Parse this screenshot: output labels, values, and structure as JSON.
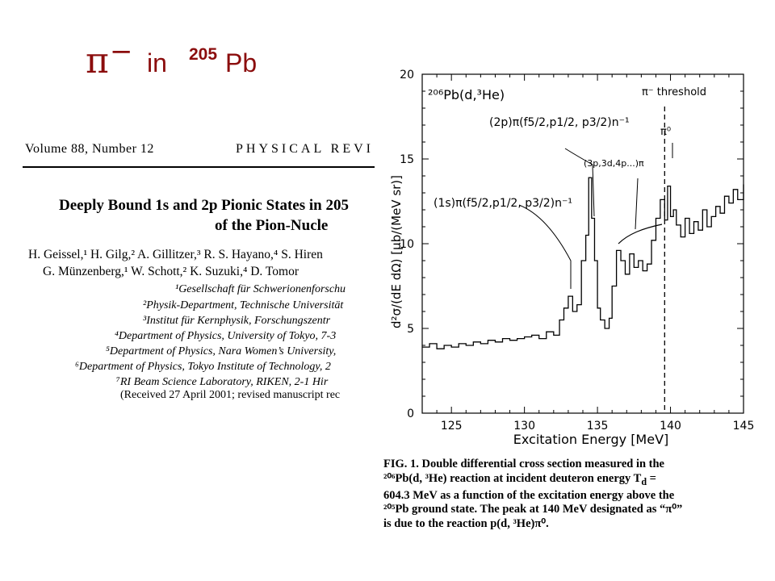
{
  "slide": {
    "title": {
      "particle": "π",
      "charge": "−",
      "word": "in",
      "mass": "205",
      "element": "Pb"
    },
    "title_color": "#8b0d0d"
  },
  "paper": {
    "volume": "Volume 88, Number 12",
    "journal": "PHYSICAL REVI",
    "title_line1": "Deeply Bound 1s and 2p Pionic States in 205",
    "title_line2": "of the Pion-Nucle",
    "authors_line1": "H. Geissel,¹ H. Gilg,² A. Gillitzer,³ R. S. Hayano,⁴ S. Hiren",
    "authors_line2": "G. Münzenberg,¹ W. Schott,² K. Suzuki,⁴ D. Tomor",
    "affiliations": [
      "¹Gesellschaft für Schwerionenforschu",
      "²Physik-Department, Technische Universität",
      "³Institut für Kernphysik, Forschungszentr",
      "⁴Department of Physics, University of Tokyo, 7-3",
      "⁵Department of Physics, Nara Women’s University,",
      "⁶Department of Physics, Tokyo Institute of Technology, 2",
      "⁷RI Beam Science Laboratory, RIKEN, 2-1 Hir"
    ],
    "received": "(Received 27 April 2001; revised manuscript rec"
  },
  "figure": {
    "reaction_label": "²⁰⁶Pb(d,³He)",
    "threshold_label": "π⁻ threshold",
    "label_pi0": "π⁰",
    "label_2p": "(2p)π(f5/2,p1/2, p3/2)n⁻¹",
    "label_3p": "(3p,3d,4p...)π",
    "label_1s": "(1s)π(f5/2,p1/2, p3/2)n⁻¹",
    "caption": {
      "l1": "FIG. 1.   Double differential cross section measured in the",
      "l2": "²⁰⁶Pb(d, ³He)  reaction at incident deuteron energy  T",
      "l2b": "d",
      "l2c": " =",
      "l3": "604.3 MeV as a function of the excitation energy above the",
      "l4": "²⁰⁵Pb ground state.  The peak at 140 MeV designated as “π⁰”",
      "l5": "is due to the reaction  p(d, ³He)π⁰."
    }
  },
  "chart_data": {
    "type": "line",
    "style": "histogram-step",
    "xlabel": "Excitation Energy   [MeV]",
    "ylabel": "d²σ/(dE dΩ)  [μb/(MeV sr)]",
    "xlim": [
      123,
      145
    ],
    "ylim": [
      0,
      20
    ],
    "xticks": [
      125,
      130,
      135,
      140,
      145
    ],
    "yticks": [
      0,
      5,
      10,
      15,
      20
    ],
    "threshold_x": 139.6,
    "series": [
      {
        "x": [
          123.0,
          123.5,
          124.0,
          124.5,
          125.0,
          125.5,
          126.0,
          126.5,
          127.0,
          127.5,
          128.0,
          128.5,
          129.0,
          129.5,
          130.0,
          130.5,
          131.0,
          131.5,
          132.0,
          132.4,
          132.7,
          133.0,
          133.3,
          133.6,
          133.9,
          134.2,
          134.4,
          134.6,
          134.8,
          135.0,
          135.2,
          135.5,
          135.8,
          136.0,
          136.3,
          136.6,
          136.9,
          137.2,
          137.5,
          137.8,
          138.1,
          138.4,
          138.7,
          139.0,
          139.3,
          139.6,
          139.8,
          140.0,
          140.2,
          140.4,
          140.7,
          141.0,
          141.3,
          141.6,
          141.9,
          142.2,
          142.5,
          142.8,
          143.1,
          143.4,
          143.7,
          144.0,
          144.3,
          144.6,
          145.0
        ],
        "y": [
          3.9,
          4.1,
          3.8,
          4.0,
          3.9,
          4.1,
          4.0,
          4.2,
          4.1,
          4.3,
          4.2,
          4.4,
          4.3,
          4.4,
          4.5,
          4.6,
          4.4,
          4.8,
          4.6,
          5.5,
          6.2,
          6.9,
          6.0,
          6.4,
          9.0,
          10.5,
          13.9,
          11.5,
          9.0,
          6.2,
          5.5,
          5.0,
          5.6,
          7.5,
          9.6,
          9.0,
          8.2,
          9.4,
          8.6,
          9.0,
          8.4,
          8.8,
          10.2,
          11.5,
          12.6,
          11.4,
          13.4,
          11.6,
          12.0,
          11.1,
          10.4,
          11.5,
          10.6,
          11.3,
          10.8,
          12.0,
          11.0,
          11.6,
          12.2,
          11.8,
          12.8,
          12.4,
          13.2,
          12.6,
          13.5
        ]
      }
    ]
  }
}
